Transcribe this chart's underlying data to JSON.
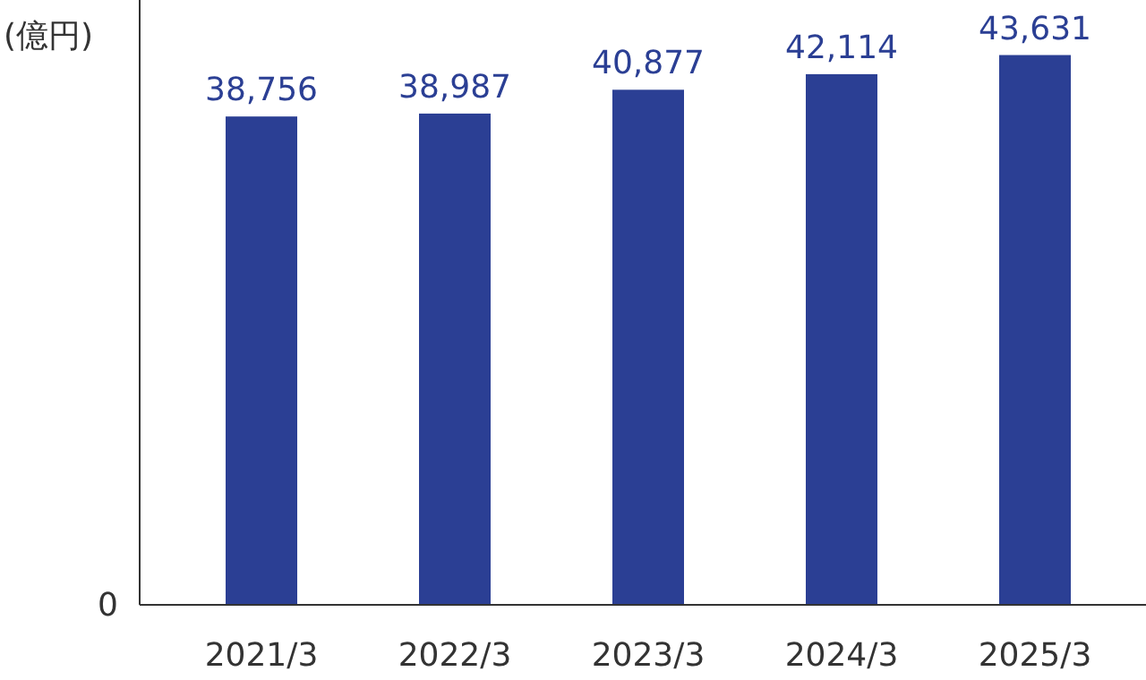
{
  "chart_data": {
    "type": "bar",
    "ylim": [
      0,
      48000
    ],
    "ylabel": "(億円)",
    "categories": [
      "2021/3",
      "2022/3",
      "2023/3",
      "2024/3",
      "2025/3"
    ],
    "values": [
      38756,
      38987,
      40877,
      42114,
      43631
    ],
    "value_labels": [
      "38,756",
      "38,987",
      "40,877",
      "42,114",
      "43,631"
    ],
    "color": "#2b3f94",
    "annotations": [
      "0"
    ]
  }
}
